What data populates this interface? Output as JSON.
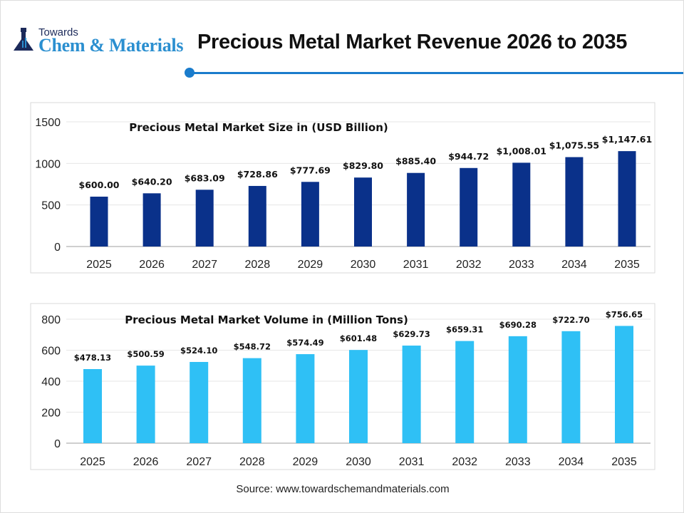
{
  "header": {
    "logo_top": "Towards",
    "logo_bottom": "Chem & Materials",
    "title": "Precious Metal Market Revenue 2026 to 2035"
  },
  "source": "Source: www.towardschemandmaterials.com",
  "chart_data": [
    {
      "type": "bar",
      "title": "Precious Metal Market Size in (USD Billion)",
      "categories": [
        "2025",
        "2026",
        "2027",
        "2028",
        "2029",
        "2030",
        "2031",
        "2032",
        "2033",
        "2034",
        "2035"
      ],
      "values": [
        600.0,
        640.2,
        683.09,
        728.86,
        777.69,
        829.8,
        885.4,
        944.72,
        1008.01,
        1075.55,
        1147.61
      ],
      "data_labels": [
        "$600.00",
        "$640.20",
        "$683.09",
        "$728.86",
        "$777.69",
        "$829.80",
        "$885.40",
        "$944.72",
        "$1,008.01",
        "$1,075.55",
        "$1,147.61"
      ],
      "ylim": [
        0,
        1500
      ],
      "yticks": [
        "0",
        "500",
        "1000",
        "1500"
      ],
      "grid": true,
      "color": "#0a318a"
    },
    {
      "type": "bar",
      "title": "Precious Metal Market Volume in (Million Tons)",
      "categories": [
        "2025",
        "2026",
        "2027",
        "2028",
        "2029",
        "2030",
        "2031",
        "2032",
        "2033",
        "2034",
        "2035"
      ],
      "values": [
        478.13,
        500.59,
        524.1,
        548.72,
        574.49,
        601.48,
        629.73,
        659.31,
        690.28,
        722.7,
        756.65
      ],
      "data_labels": [
        "$478.13",
        "$500.59",
        "$524.10",
        "$548.72",
        "$574.49",
        "$601.48",
        "$629.73",
        "$659.31",
        "$690.28",
        "$722.70",
        "$756.65"
      ],
      "ylim": [
        0,
        800
      ],
      "yticks": [
        "0",
        "200",
        "400",
        "600",
        "800"
      ],
      "grid": true,
      "color": "#2fc0f5"
    }
  ]
}
